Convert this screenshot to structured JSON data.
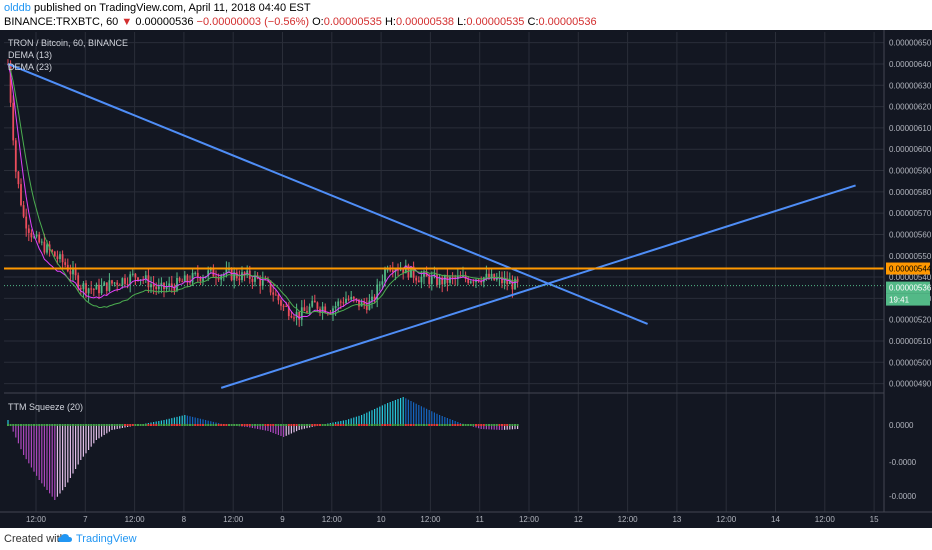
{
  "header": {
    "user": "olddb",
    "published_text": " published on TradingView.com, April 11, 2018 04:40 EST",
    "symbol_line": "BINANCE:TRXBTC, 60",
    "last": "0.00000536",
    "change": "−0.00000003 (−0.56%)",
    "open_label": "O:",
    "open": "0.00000535",
    "high_label": "H:",
    "high": "0.00000538",
    "low_label": "L:",
    "low": "0.00000535",
    "close_label": "C:",
    "close": "0.00000536"
  },
  "legend": {
    "title": "TRON / Bitcoin, 60, BINANCE",
    "dema13": "DEMA (13)",
    "dema23": "DEMA (23)",
    "ttm": "TTM Squeeze (20)"
  },
  "price_axis": {
    "ticks": [
      "0.00000650",
      "0.00000640",
      "0.00000630",
      "0.00000620",
      "0.00000610",
      "0.00000600",
      "0.00000590",
      "0.00000580",
      "0.00000570",
      "0.00000560",
      "0.00000550",
      "0.00000540",
      "0.00000530",
      "0.00000520",
      "0.00000510",
      "0.00000500",
      "0.00000490"
    ],
    "horizontal_label": "0.00000544",
    "current_label": "0.00000536",
    "countdown": "19:41"
  },
  "osc_axis": {
    "ticks": [
      "0.0000",
      "-0.0000",
      "-0.0000"
    ]
  },
  "time_axis": {
    "labels": [
      "12:00",
      "7",
      "12:00",
      "8",
      "12:00",
      "9",
      "12:00",
      "10",
      "12:00",
      "11",
      "12:00",
      "12",
      "12:00",
      "13",
      "12:00",
      "14",
      "12:00",
      "15"
    ]
  },
  "colors": {
    "up": "#53b987",
    "down": "#eb4d5c",
    "trendline": "#4f8ef7",
    "horizontal": "#ff9800",
    "dema13": "#e040fb",
    "dema23": "#4caf50",
    "squeeze_on": "#e53935",
    "squeeze_off": "#43a047"
  },
  "chart_data": {
    "type": "candlestick",
    "symbol": "TRXBTC",
    "interval": "60",
    "ylim": [
      4.87e-06,
      6.55e-06
    ],
    "horizontal_line": 5.44e-06,
    "current_price": 5.36e-06,
    "anchors": [
      [
        0,
        6.4
      ],
      [
        3,
        5.9
      ],
      [
        6,
        5.68
      ],
      [
        10,
        5.58
      ],
      [
        16,
        5.52
      ],
      [
        22,
        5.46
      ],
      [
        28,
        5.36
      ],
      [
        34,
        5.34
      ],
      [
        42,
        5.38
      ],
      [
        50,
        5.41
      ],
      [
        58,
        5.34
      ],
      [
        66,
        5.37
      ],
      [
        72,
        5.4
      ],
      [
        78,
        5.42
      ],
      [
        86,
        5.41
      ],
      [
        94,
        5.4
      ],
      [
        100,
        5.36
      ],
      [
        106,
        5.26
      ],
      [
        112,
        5.22
      ],
      [
        118,
        5.27
      ],
      [
        124,
        5.25
      ],
      [
        130,
        5.3
      ],
      [
        136,
        5.27
      ],
      [
        140,
        5.28
      ],
      [
        146,
        5.46
      ],
      [
        152,
        5.44
      ],
      [
        158,
        5.4
      ],
      [
        166,
        5.38
      ],
      [
        174,
        5.39
      ],
      [
        182,
        5.4
      ],
      [
        190,
        5.38
      ],
      [
        196,
        5.36
      ]
    ],
    "squeeze_anchors": [
      [
        0,
        0.05
      ],
      [
        6,
        -0.3
      ],
      [
        12,
        -0.55
      ],
      [
        18,
        -0.75
      ],
      [
        22,
        -0.62
      ],
      [
        28,
        -0.35
      ],
      [
        34,
        -0.15
      ],
      [
        40,
        -0.05
      ],
      [
        50,
        0.0
      ],
      [
        60,
        0.05
      ],
      [
        68,
        0.1
      ],
      [
        76,
        0.05
      ],
      [
        84,
        0.0
      ],
      [
        92,
        -0.02
      ],
      [
        100,
        -0.06
      ],
      [
        106,
        -0.12
      ],
      [
        112,
        -0.05
      ],
      [
        120,
        0.0
      ],
      [
        130,
        0.05
      ],
      [
        136,
        0.1
      ],
      [
        146,
        0.22
      ],
      [
        152,
        0.28
      ],
      [
        158,
        0.2
      ],
      [
        166,
        0.1
      ],
      [
        174,
        0.02
      ],
      [
        182,
        -0.04
      ],
      [
        190,
        -0.05
      ],
      [
        196,
        -0.04
      ]
    ],
    "candle_count": 197,
    "trendlines": [
      {
        "name": "descending",
        "x1": 0,
        "y1": 6.4,
        "x2": 246,
        "y2": 5.18
      },
      {
        "name": "ascending",
        "x1": 82,
        "y1": 4.88,
        "x2": 326,
        "y2": 5.83
      }
    ]
  }
}
